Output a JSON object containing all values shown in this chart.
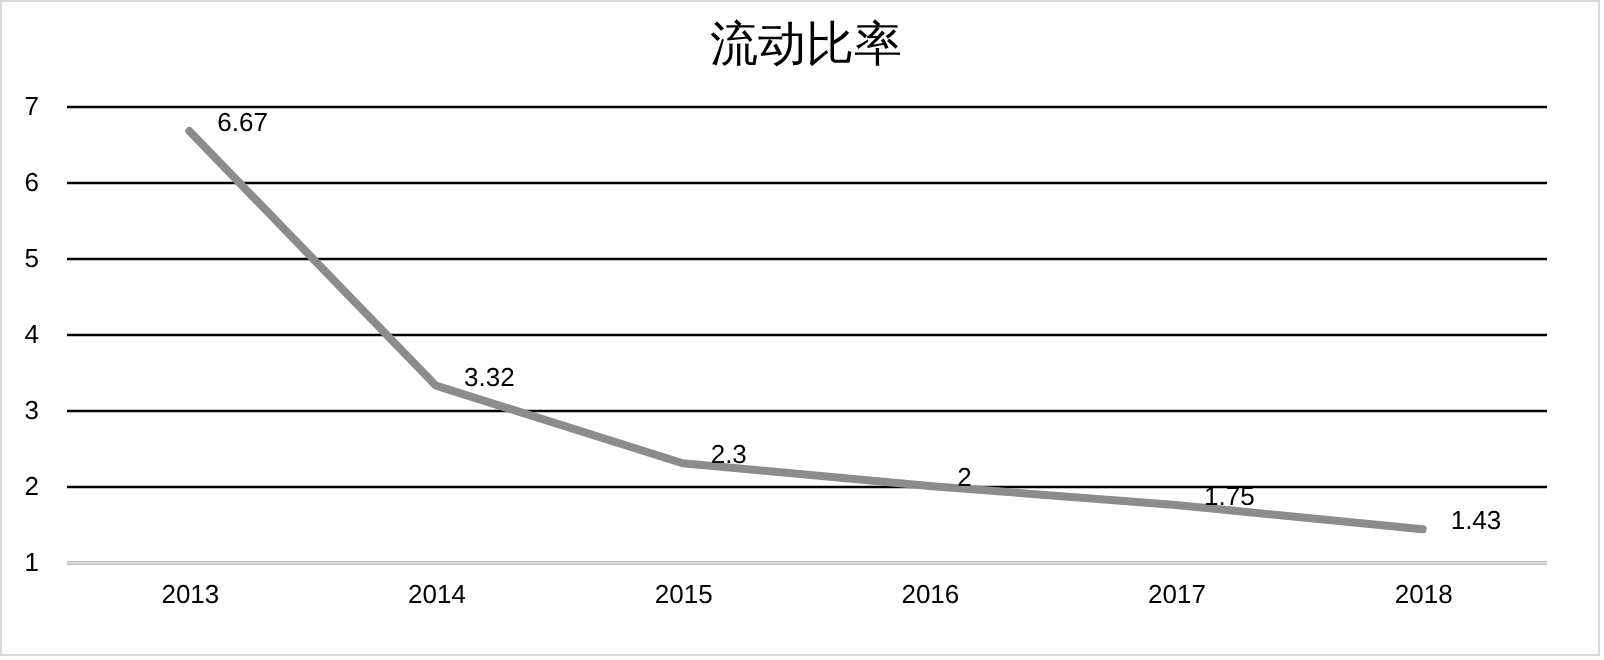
{
  "chart_data": {
    "type": "line",
    "title": "流动比率",
    "categories": [
      "2013",
      "2014",
      "2015",
      "2016",
      "2017",
      "2018"
    ],
    "series": [
      {
        "color": "#8c8c8c",
        "values": [
          6.67,
          3.32,
          2.3,
          2,
          1.75,
          1.43
        ]
      }
    ],
    "ylim": [
      1,
      7
    ],
    "yticks": [
      1,
      2,
      3,
      4,
      5,
      6,
      7
    ],
    "grid": "y",
    "data_labels": true,
    "marker": "none",
    "line_style": "solid",
    "legend": false
  }
}
